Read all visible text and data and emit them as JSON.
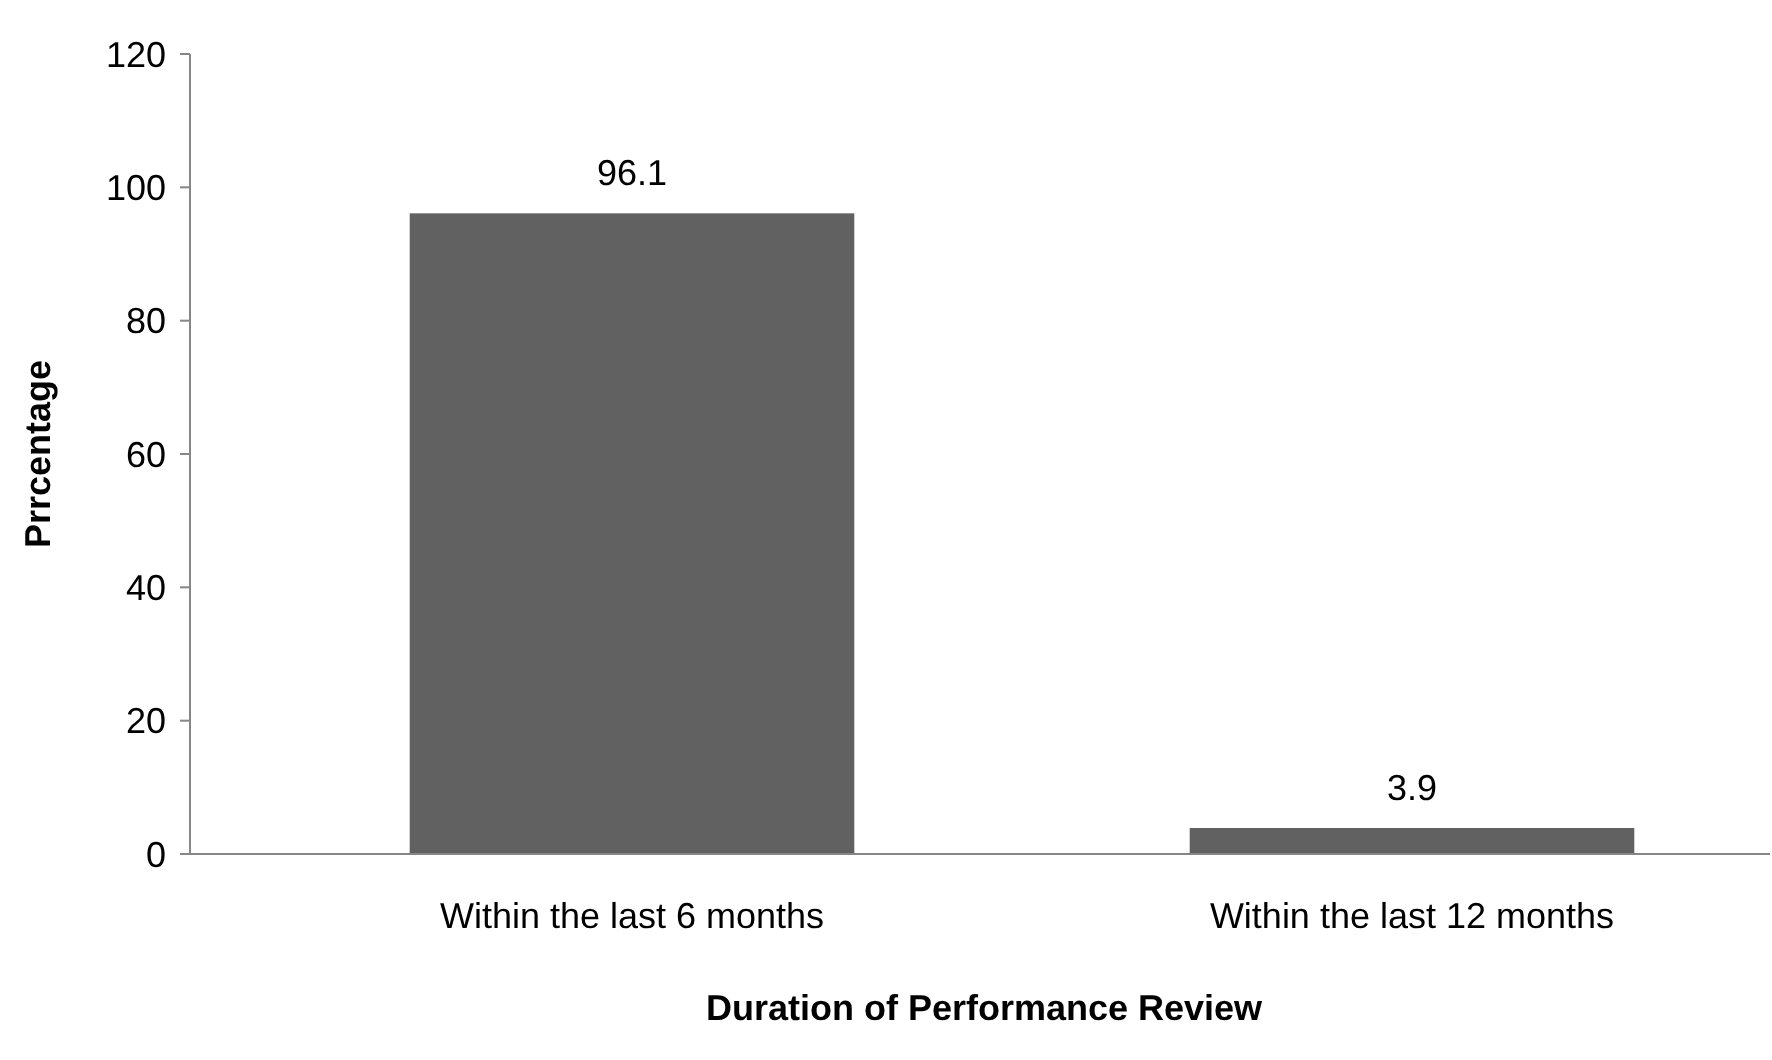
{
  "chart_data": {
    "type": "bar",
    "xlabel": "Duration of Performance Review",
    "ylabel": "Prrcentage",
    "categories": [
      "Within the last 6 months",
      "Within the last 12 months"
    ],
    "values": [
      96.1,
      3.9
    ],
    "color": "#616161",
    "data_labels": true,
    "ylim": [
      0,
      120
    ],
    "yticks": [
      0,
      20,
      40,
      60,
      80,
      100,
      120
    ],
    "grid": false
  }
}
